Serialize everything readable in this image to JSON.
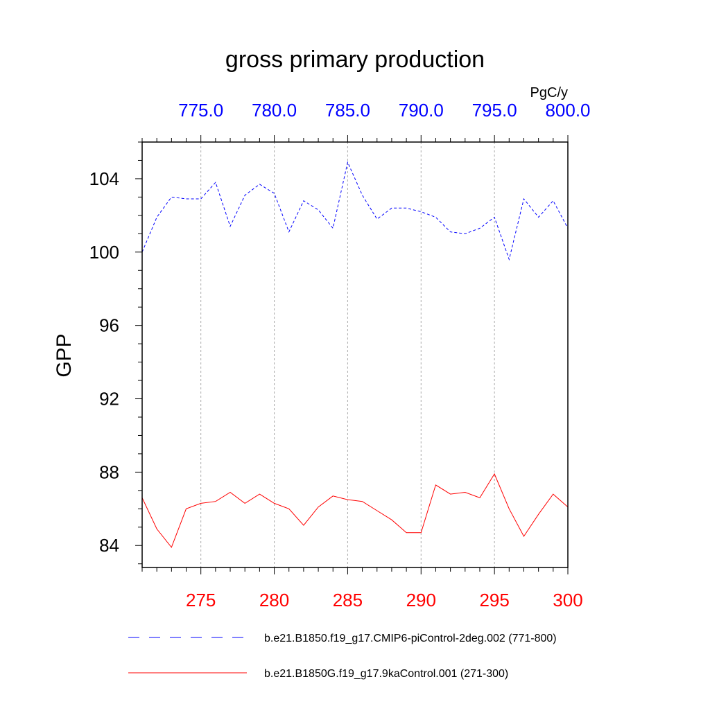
{
  "chart_data": {
    "type": "line",
    "title": "gross primary production",
    "units": "PgC/y",
    "ylabel": "GPP",
    "ylim": [
      82.8,
      106
    ],
    "y_ticks": [
      84,
      88,
      92,
      96,
      100,
      104
    ],
    "bottom_axis": {
      "range": [
        271,
        300
      ],
      "ticks": [
        275,
        280,
        285,
        290,
        295,
        300
      ],
      "tick_labels": [
        "275",
        "280",
        "285",
        "290",
        "295",
        "300"
      ],
      "color": "#ff0000"
    },
    "top_axis": {
      "range": [
        771,
        800
      ],
      "ticks": [
        775,
        780,
        785,
        790,
        795,
        800
      ],
      "tick_labels": [
        "775.0",
        "780.0",
        "785.0",
        "790.0",
        "795.0",
        "800.0"
      ],
      "color": "#0000ff"
    },
    "grid": "vertical dashed at major ticks",
    "legend_position": "bottom",
    "series": [
      {
        "name": "b.e21.B1850.f19_g17.CMIP6-piControl-2deg.002 (771-800)",
        "axis": "top",
        "style": "dashed",
        "color": "#0000ff",
        "x": [
          771,
          772,
          773,
          774,
          775,
          776,
          777,
          778,
          779,
          780,
          781,
          782,
          783,
          784,
          785,
          786,
          787,
          788,
          789,
          790,
          791,
          792,
          793,
          794,
          795,
          796,
          797,
          798,
          799,
          800
        ],
        "values": [
          100.0,
          101.9,
          103.0,
          102.9,
          102.9,
          103.8,
          101.4,
          103.1,
          103.7,
          103.2,
          101.1,
          102.8,
          102.3,
          101.3,
          104.9,
          103.1,
          101.8,
          102.4,
          102.4,
          102.2,
          101.9,
          101.1,
          101.0,
          101.3,
          101.9,
          99.6,
          102.9,
          101.9,
          102.8,
          101.3
        ]
      },
      {
        "name": "b.e21.B1850G.f19_g17.9kaControl.001 (271-300)",
        "axis": "bottom",
        "style": "solid",
        "color": "#ff0000",
        "x": [
          271,
          272,
          273,
          274,
          275,
          276,
          277,
          278,
          279,
          280,
          281,
          282,
          283,
          284,
          285,
          286,
          287,
          288,
          289,
          290,
          291,
          292,
          293,
          294,
          295,
          296,
          297,
          298,
          299,
          300
        ],
        "values": [
          86.6,
          84.9,
          83.9,
          86.0,
          86.3,
          86.4,
          86.9,
          86.3,
          86.8,
          86.3,
          86.0,
          85.1,
          86.1,
          86.7,
          86.5,
          86.4,
          85.9,
          85.4,
          84.7,
          84.7,
          87.3,
          86.8,
          86.9,
          86.6,
          87.9,
          86.0,
          84.5,
          85.7,
          86.8,
          86.1
        ]
      }
    ]
  }
}
